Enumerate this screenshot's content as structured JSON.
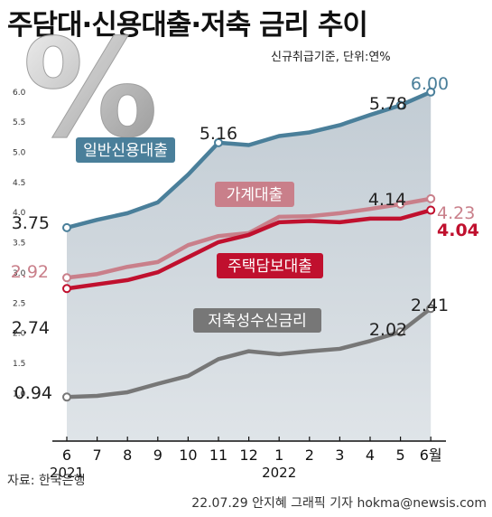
{
  "title": "주담대·신용대출·저축 금리 추이",
  "subtitle": "신규취급기준, 단위:연%",
  "source": "자료: 한국은행",
  "credit": "22.07.29 안지혜 그래픽 기자 hokma@newsis.com",
  "percent_symbol": "%",
  "chart_data": {
    "type": "line",
    "categories": [
      "6",
      "7",
      "8",
      "9",
      "10",
      "11",
      "12",
      "1",
      "2",
      "3",
      "4",
      "5",
      "6월"
    ],
    "year_labels": [
      "2021",
      "2022"
    ],
    "ylim": [
      0.5,
      6.2
    ],
    "yticks": [
      "1.0",
      "1.5",
      "2.0",
      "2.5",
      "3.0",
      "3.5",
      "4.0",
      "4.5",
      "5.0",
      "5.5",
      "6.0"
    ],
    "grid": false,
    "series": [
      {
        "name": "일반신용대출",
        "color": "#4a7f9a",
        "values": [
          3.75,
          3.88,
          3.99,
          4.17,
          4.63,
          5.16,
          5.12,
          5.27,
          5.33,
          5.45,
          5.62,
          5.78,
          6.0
        ],
        "labels": [
          {
            "index": 0,
            "text": "3.75"
          },
          {
            "index": 5,
            "text": "5.16"
          },
          {
            "index": 11,
            "text": "5.78"
          },
          {
            "index": 12,
            "text": "6.00"
          }
        ]
      },
      {
        "name": "가계대출",
        "color": "#c97f8a",
        "values": [
          2.92,
          2.98,
          3.1,
          3.18,
          3.46,
          3.61,
          3.66,
          3.93,
          3.94,
          3.99,
          4.06,
          4.14,
          4.23
        ],
        "labels": [
          {
            "index": 0,
            "text": "2.92"
          },
          {
            "index": 11,
            "text": "4.14"
          },
          {
            "index": 12,
            "text": "4.23"
          }
        ]
      },
      {
        "name": "주택담보대출",
        "color": "#c0102e",
        "values": [
          2.74,
          2.81,
          2.88,
          3.01,
          3.26,
          3.51,
          3.63,
          3.84,
          3.86,
          3.84,
          3.9,
          3.9,
          4.04
        ],
        "labels": [
          {
            "index": 0,
            "text": "2.74"
          },
          {
            "index": 12,
            "text": "4.04"
          }
        ]
      },
      {
        "name": "저축성수신금리",
        "color": "#777777",
        "values": [
          0.94,
          0.96,
          1.02,
          1.16,
          1.29,
          1.57,
          1.7,
          1.65,
          1.7,
          1.74,
          1.87,
          2.02,
          2.41
        ],
        "labels": [
          {
            "index": 0,
            "text": "0.94"
          },
          {
            "index": 11,
            "text": "2.02"
          },
          {
            "index": 12,
            "text": "2.41"
          }
        ]
      }
    ]
  }
}
